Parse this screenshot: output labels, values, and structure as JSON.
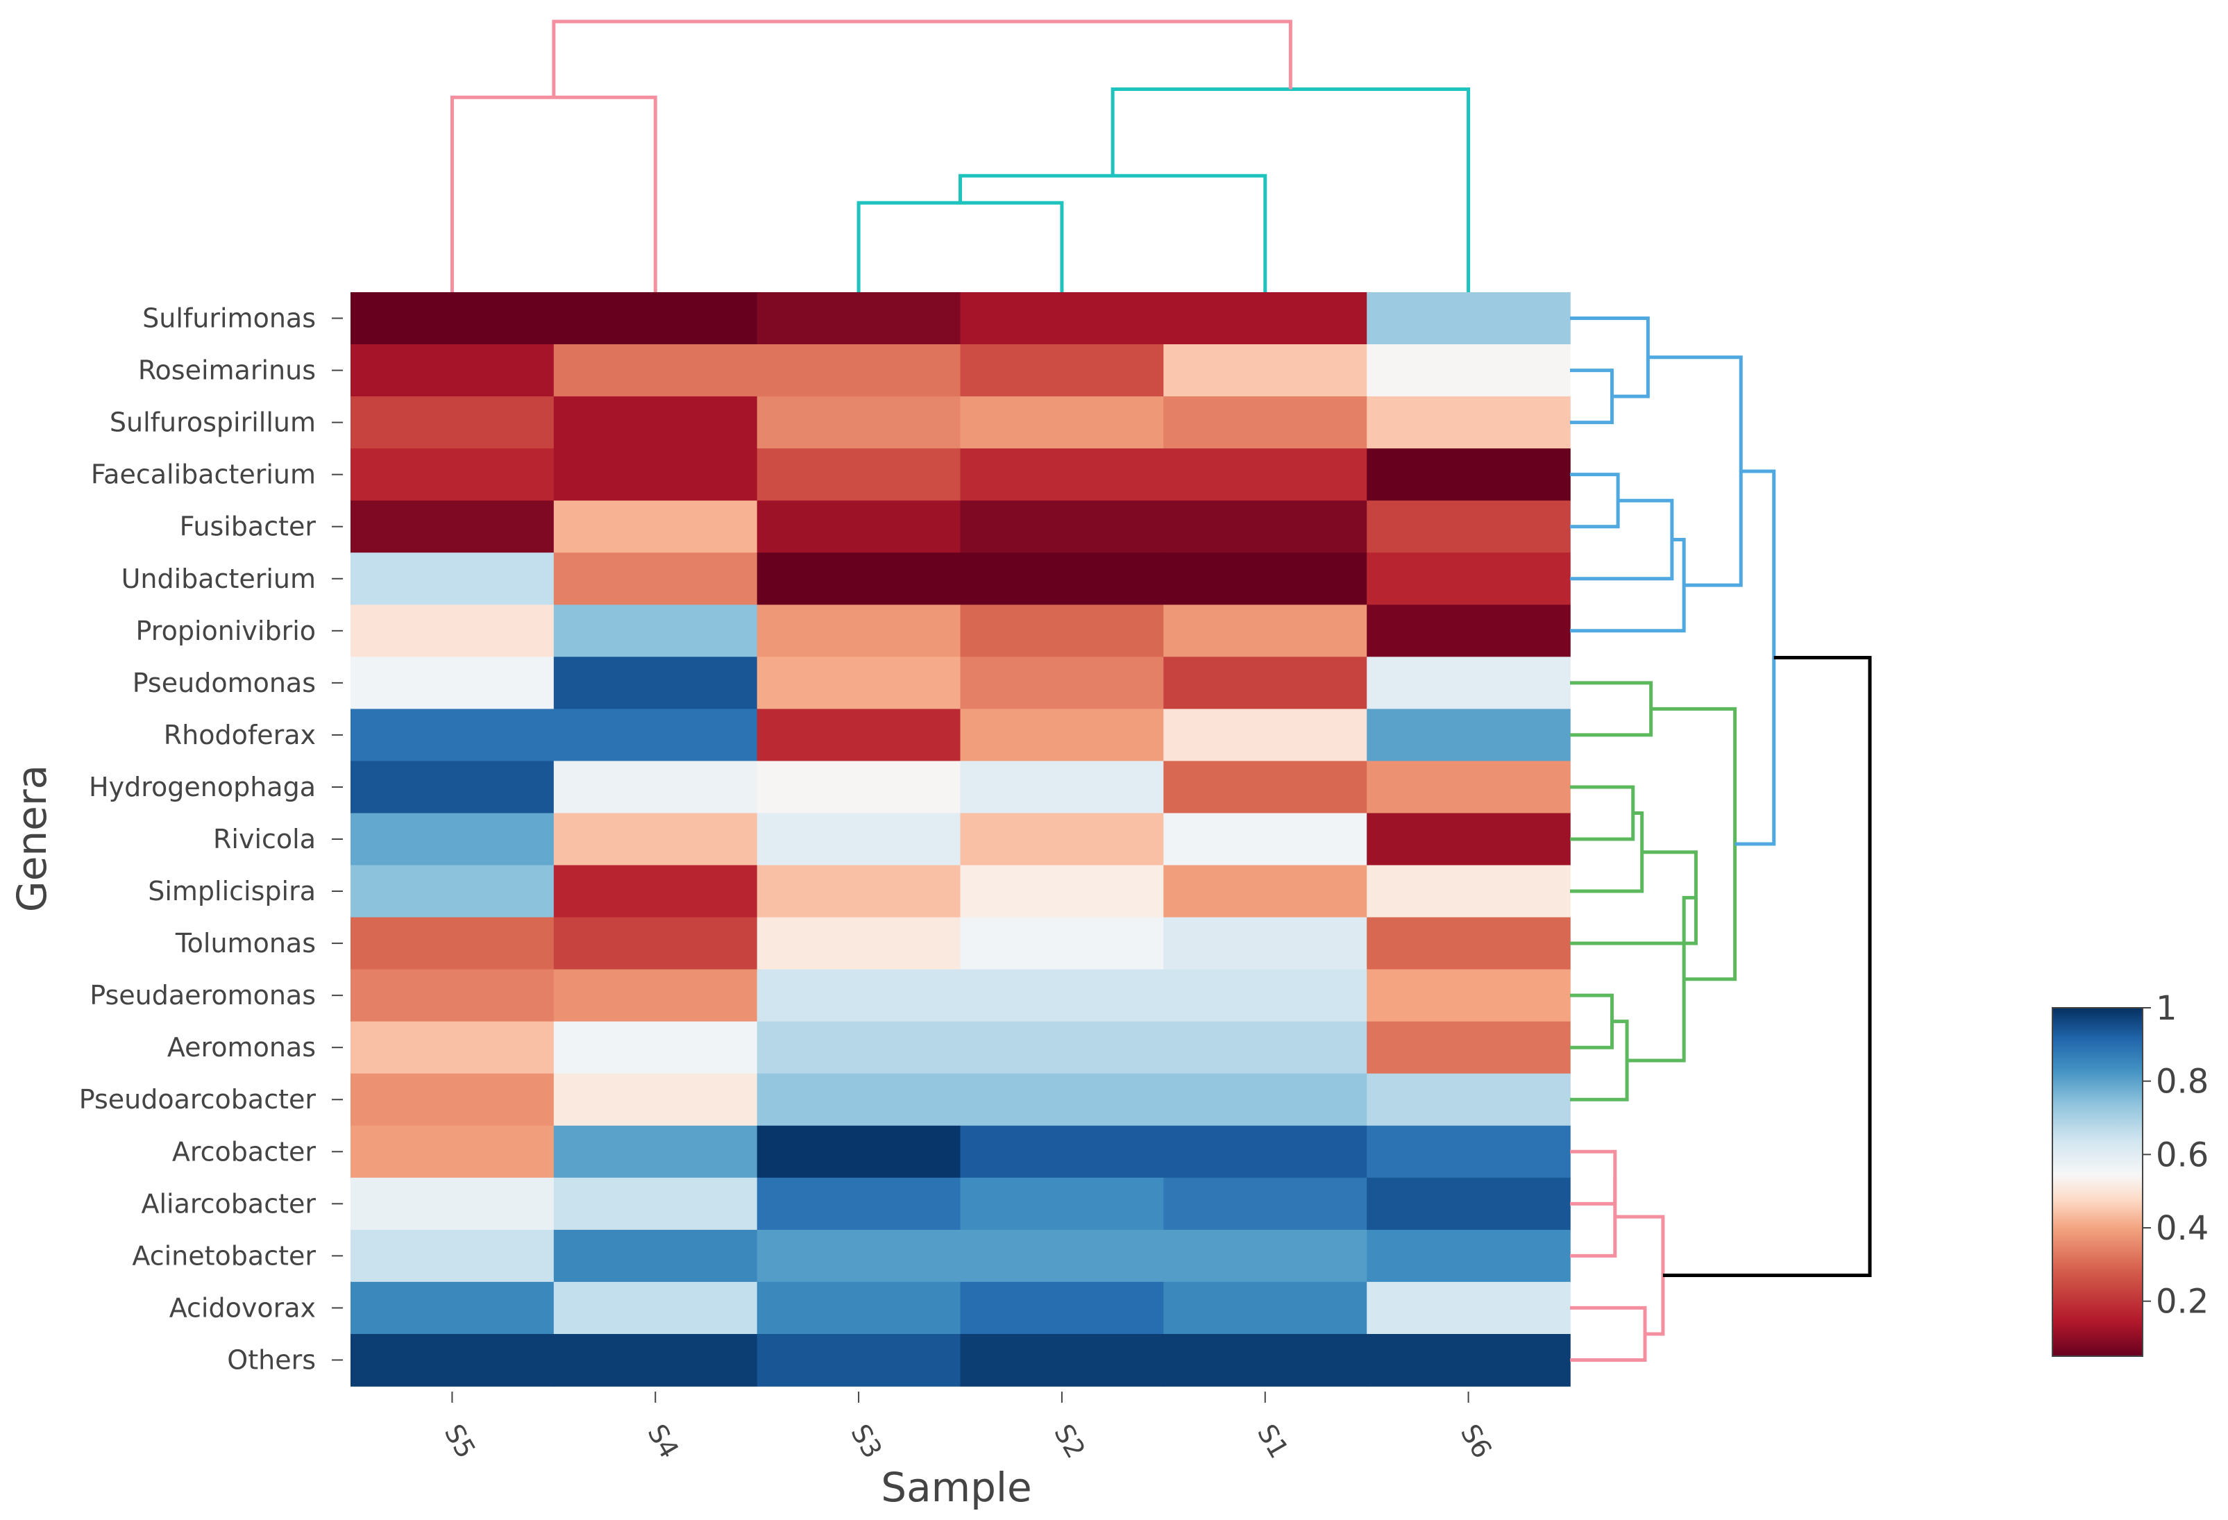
{
  "chart_data": {
    "type": "heatmap",
    "title": "",
    "xlabel": "Sample",
    "ylabel": "Genera",
    "columns": [
      "S5",
      "S4",
      "S3",
      "S2",
      "S1",
      "S6"
    ],
    "rows": [
      "Sulfurimonas",
      "Roseimarinus",
      "Sulfurospirillum",
      "Faecalibacterium",
      "Fusibacter",
      "Undibacterium",
      "Propionivibrio",
      "Pseudomonas",
      "Rhodoferax",
      "Hydrogenophaga",
      "Rivicola",
      "Simplicispira",
      "Tolumonas",
      "Pseudaeromonas",
      "Aeromonas",
      "Pseudoarcobacter",
      "Arcobacter",
      "Aliarcobacter",
      "Acinetobacter",
      "Acidovorax",
      "Others"
    ],
    "values": [
      [
        0.02,
        0.02,
        0.08,
        0.13,
        0.13,
        0.72
      ],
      [
        0.13,
        0.32,
        0.32,
        0.25,
        0.45,
        0.54
      ],
      [
        0.23,
        0.13,
        0.35,
        0.38,
        0.34,
        0.45
      ],
      [
        0.17,
        0.13,
        0.25,
        0.18,
        0.18,
        0.02
      ],
      [
        0.08,
        0.42,
        0.12,
        0.08,
        0.08,
        0.23
      ],
      [
        0.66,
        0.34,
        0.02,
        0.02,
        0.02,
        0.17
      ],
      [
        0.5,
        0.74,
        0.38,
        0.3,
        0.38,
        0.07
      ],
      [
        0.56,
        0.94,
        0.41,
        0.34,
        0.23,
        0.6
      ],
      [
        0.89,
        0.89,
        0.18,
        0.39,
        0.5,
        0.8
      ],
      [
        0.94,
        0.57,
        0.54,
        0.6,
        0.3,
        0.37
      ],
      [
        0.79,
        0.44,
        0.6,
        0.44,
        0.56,
        0.12
      ],
      [
        0.74,
        0.17,
        0.44,
        0.52,
        0.39,
        0.51
      ],
      [
        0.3,
        0.23,
        0.51,
        0.56,
        0.61,
        0.3
      ],
      [
        0.34,
        0.37,
        0.64,
        0.64,
        0.64,
        0.4
      ],
      [
        0.44,
        0.56,
        0.68,
        0.68,
        0.68,
        0.32
      ],
      [
        0.37,
        0.51,
        0.73,
        0.73,
        0.73,
        0.68
      ],
      [
        0.39,
        0.8,
        0.99,
        0.93,
        0.93,
        0.89
      ],
      [
        0.58,
        0.65,
        0.89,
        0.84,
        0.88,
        0.94
      ],
      [
        0.65,
        0.85,
        0.81,
        0.81,
        0.81,
        0.84
      ],
      [
        0.85,
        0.66,
        0.85,
        0.9,
        0.85,
        0.63
      ],
      [
        0.98,
        0.98,
        0.94,
        0.98,
        0.98,
        0.98
      ]
    ],
    "colorscale": "RdBu",
    "zlim": [
      0.05,
      1
    ],
    "colorbar": {
      "ticks": [
        0.2,
        0.4,
        0.6,
        0.8,
        1
      ],
      "tick_labels": [
        "0.2",
        "0.4",
        "0.6",
        "0.8",
        "1"
      ]
    },
    "column_dendrogram": {
      "leaf_order": [
        "S5",
        "S4",
        "S3",
        "S2",
        "S1",
        "S6"
      ],
      "merges": [
        {
          "a": "S5",
          "b": "S4",
          "height": 0.72,
          "color": "#f48fa0"
        },
        {
          "a": "S3",
          "b": "S2",
          "height": 0.33,
          "color": "#1fc3bd"
        },
        {
          "a": "S3+S2",
          "b": "S1",
          "height": 0.43,
          "color": "#1fc3bd"
        },
        {
          "a": "S3+S2+S1",
          "b": "S6",
          "height": 0.75,
          "color": "#1fc3bd"
        },
        {
          "a": "S5+S4",
          "b": "S3+S2+S1+S6",
          "height": 1.0,
          "color": "#f48fa0"
        }
      ]
    },
    "row_dendrogram": {
      "leaf_order": [
        "Sulfurimonas",
        "Roseimarinus",
        "Sulfurospirillum",
        "Faecalibacterium",
        "Fusibacter",
        "Undibacterium",
        "Propionivibrio",
        "Pseudomonas",
        "Rhodoferax",
        "Hydrogenophaga",
        "Rivicola",
        "Simplicispira",
        "Tolumonas",
        "Pseudaeromonas",
        "Aeromonas",
        "Pseudoarcobacter",
        "Arcobacter",
        "Aliarcobacter",
        "Acinetobacter",
        "Acidovorax",
        "Others"
      ],
      "merges": [
        {
          "a": "Roseimarinus",
          "b": "Sulfurospirillum",
          "height": 0.14,
          "color": "#4fa8e0"
        },
        {
          "a": "Sulfurimonas",
          "b": "Roseimarinus+Sulfurospirillum",
          "height": 0.26,
          "color": "#4fa8e0"
        },
        {
          "a": "Faecalibacterium",
          "b": "Fusibacter",
          "height": 0.16,
          "color": "#4fa8e0"
        },
        {
          "a": "Faecalibacterium+Fusibacter",
          "b": "Undibacterium",
          "height": 0.34,
          "color": "#4fa8e0"
        },
        {
          "a": "Faecalibacterium+Fusibacter+Undibacterium",
          "b": "Propionivibrio",
          "height": 0.38,
          "color": "#4fa8e0"
        },
        {
          "a": "Sulfurimonas+Roseimarinus+Sulfurospirillum",
          "b": "Faecalibacterium+Fusibacter+Undibacterium+Propionivibrio",
          "height": 0.57,
          "color": "#4fa8e0"
        },
        {
          "a": "Pseudomonas",
          "b": "Rhodoferax",
          "height": 0.27,
          "color": "#5cb85c"
        },
        {
          "a": "Hydrogenophaga",
          "b": "Rivicola",
          "height": 0.21,
          "color": "#5cb85c"
        },
        {
          "a": "Hydrogenophaga+Rivicola",
          "b": "Simplicispira",
          "height": 0.24,
          "color": "#5cb85c"
        },
        {
          "a": "Hydrogenophaga+Rivicola+Simplicispira",
          "b": "Tolumonas",
          "height": 0.42,
          "color": "#5cb85c"
        },
        {
          "a": "Pseudaeromonas",
          "b": "Aeromonas",
          "height": 0.14,
          "color": "#5cb85c"
        },
        {
          "a": "Pseudaeromonas+Aeromonas",
          "b": "Pseudoarcobacter",
          "height": 0.19,
          "color": "#5cb85c"
        },
        {
          "a": "Hydrogenophaga+Rivicola+Simplicispira+Tolumonas",
          "b": "Pseudaeromonas+Aeromonas+Pseudoarcobacter",
          "height": 0.38,
          "color": "#5cb85c"
        },
        {
          "a": "Pseudomonas+Rhodoferax",
          "b": "Hydrogenophaga+Rivicola+Simplicispira+Tolumonas+Pseudaeromonas+Aeromonas+Pseudoarcobacter",
          "height": 0.55,
          "color": "#5cb85c"
        },
        {
          "a": "Blue cluster",
          "b": "Green cluster",
          "height": 0.68,
          "color": "#4fa8e0"
        },
        {
          "a": "Arcobacter",
          "b": "Aliarcobacter",
          "height": 0.15,
          "color": "#f48fa0"
        },
        {
          "a": "Arcobacter+Aliarcobacter",
          "b": "Acinetobacter",
          "height": 0.15,
          "color": "#f48fa0"
        },
        {
          "a": "Acidovorax",
          "b": "Others",
          "height": 0.25,
          "color": "#f48fa0"
        },
        {
          "a": "Arcobacter+Aliarcobacter+Acinetobacter",
          "b": "Acidovorax+Others",
          "height": 0.31,
          "color": "#f48fa0"
        },
        {
          "a": "Blue+Green clusters",
          "b": "Pink cluster",
          "height": 1.0,
          "color": "#000000"
        }
      ]
    }
  }
}
